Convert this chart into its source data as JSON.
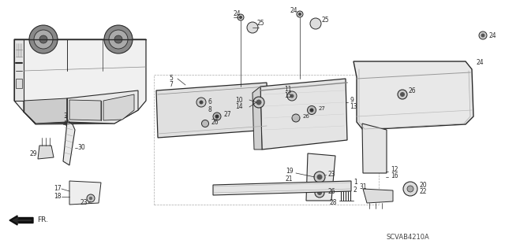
{
  "background_color": "#ffffff",
  "line_color": "#2a2a2a",
  "diagram_code": "SCVAB4210A",
  "fig_w": 6.4,
  "fig_h": 3.19,
  "dpi": 100
}
